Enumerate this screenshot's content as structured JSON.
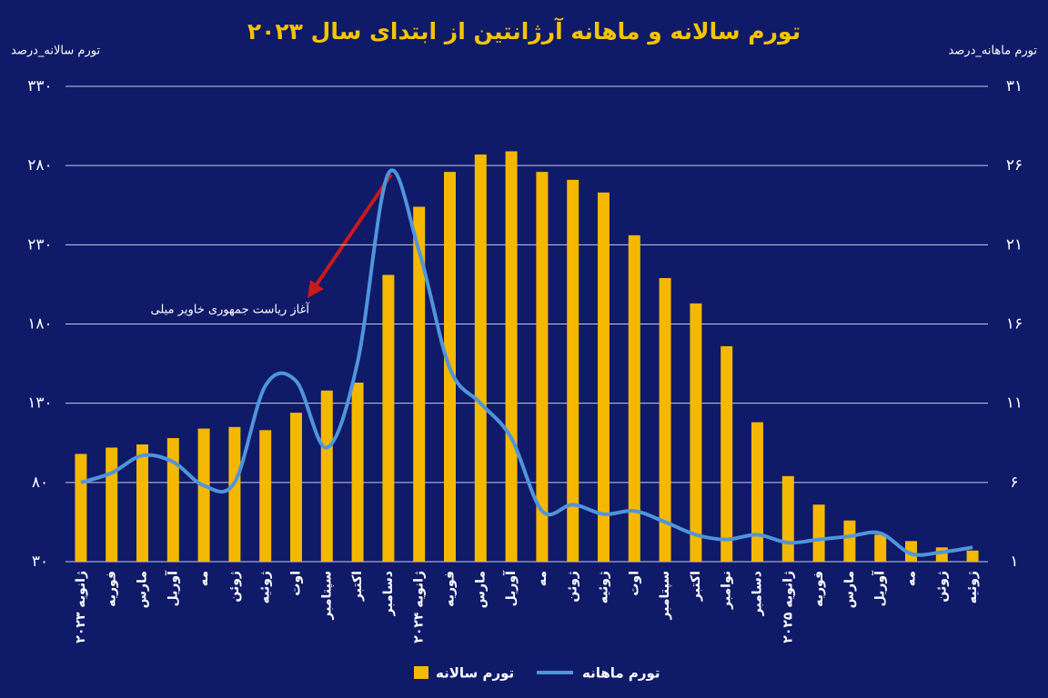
{
  "chart_data": {
    "type": "bar",
    "title": "تورم سالانه و ماهانه آرژانتین از ابتدای سال ۲۰۲۳",
    "y_label": "تورم سالانه_درصد",
    "y2_label": "تورم ماهانه_درصد",
    "categories": [
      "ژانویه ۲۰۲۳",
      "فوریه",
      "مارس",
      "آوریل",
      "مه",
      "ژوئن",
      "ژوئیه",
      "اوت",
      "سپتامبر",
      "اکتبر",
      "دسامبر",
      "ژانویه ۲۰۲۴",
      "فوریه",
      "مارس",
      "آوریل",
      "مه",
      "ژوئن",
      "ژوئیه",
      "اوت",
      "سپتامبر",
      "اکتبر",
      "نوامبر",
      "دسامبر",
      "ژانویه ۲۰۲۵",
      "فوریه",
      "مارس",
      "آوریل",
      "مه",
      "ژوئن",
      "ژوئیه"
    ],
    "series": [
      {
        "name": "تورم سالانه",
        "type": "bar",
        "color": "#f5b800",
        "values": [
          98,
          102,
          104,
          108,
          114,
          115,
          113,
          124,
          138,
          143,
          211,
          254,
          276,
          287,
          289,
          276,
          271,
          263,
          236,
          209,
          193,
          166,
          118,
          84,
          66,
          56,
          47,
          43,
          39,
          37
        ]
      },
      {
        "name": "تورم ماهانه",
        "type": "line",
        "axis": "y2",
        "color": "#4f95dc",
        "values": [
          6.0,
          6.6,
          7.7,
          7.3,
          5.8,
          6.0,
          12.1,
          12.4,
          8.2,
          13.6,
          25.5,
          20.6,
          13.2,
          11.0,
          8.8,
          4.2,
          4.6,
          4.0,
          4.2,
          3.5,
          2.7,
          2.4,
          2.7,
          2.2,
          2.4,
          2.6,
          2.8,
          1.5,
          1.6,
          1.9
        ]
      }
    ],
    "ylim": [
      30,
      330
    ],
    "yticks": [
      {
        "value": 30,
        "label": "۳۰"
      },
      {
        "value": 80,
        "label": "۸۰"
      },
      {
        "value": 130,
        "label": "۱۳۰"
      },
      {
        "value": 180,
        "label": "۱۸۰"
      },
      {
        "value": 230,
        "label": "۲۳۰"
      },
      {
        "value": 280,
        "label": "۲۸۰"
      },
      {
        "value": 330,
        "label": "۳۳۰"
      }
    ],
    "y2lim": [
      1,
      31
    ],
    "y2ticks": [
      {
        "value": 1,
        "label": "۱"
      },
      {
        "value": 6,
        "label": "۶"
      },
      {
        "value": 11,
        "label": "۱۱"
      },
      {
        "value": 16,
        "label": "۱۶"
      },
      {
        "value": 21,
        "label": "۲۱"
      },
      {
        "value": 26,
        "label": "۲۶"
      },
      {
        "value": 31,
        "label": "۳۱"
      }
    ],
    "grid": true,
    "annotations": [
      {
        "text": "آغاز ریاست جمهوری خاویر میلی"
      }
    ]
  }
}
